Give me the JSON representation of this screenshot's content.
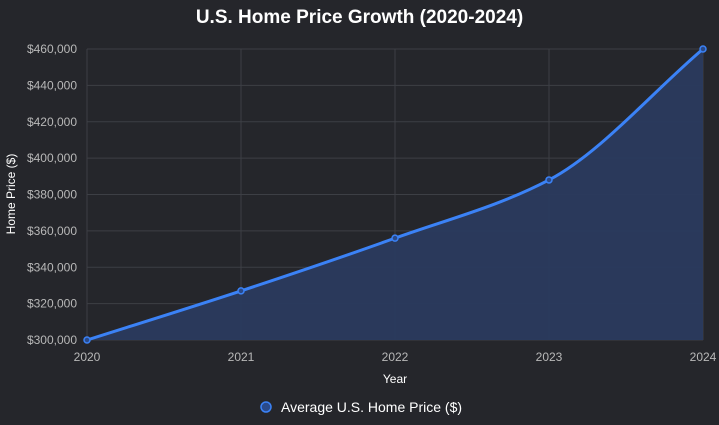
{
  "chart_data": {
    "type": "area",
    "title": "U.S. Home Price Growth (2020-2024)",
    "xlabel": "Year",
    "ylabel": "Home Price ($)",
    "x": [
      "2020",
      "2021",
      "2022",
      "2023",
      "2024"
    ],
    "series": [
      {
        "name": "Average U.S. Home Price ($)",
        "values": [
          300000,
          327000,
          356000,
          388000,
          460000
        ]
      }
    ],
    "ylim": [
      300000,
      460000
    ],
    "yticks": [
      300000,
      320000,
      340000,
      360000,
      380000,
      400000,
      420000,
      440000,
      460000
    ],
    "ytick_labels": [
      "$300,000",
      "$320,000",
      "$340,000",
      "$360,000",
      "$380,000",
      "$400,000",
      "$420,000",
      "$440,000",
      "$460,000"
    ],
    "grid": true,
    "legend": "bottom",
    "colors": {
      "line": "#3b82f6",
      "fill": "#2a3a5e",
      "background": "#25262b"
    }
  }
}
